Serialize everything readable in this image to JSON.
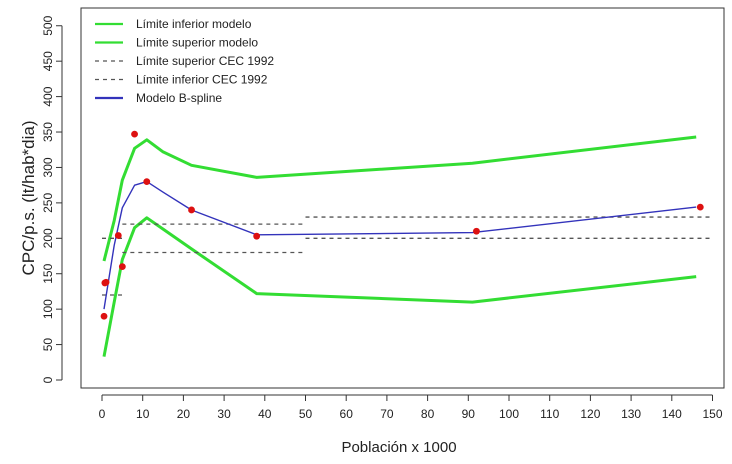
{
  "chart_data": {
    "type": "line",
    "xlabel": "Población x 1000",
    "ylabel": "CPC/p.s. (lt/hab*dia)",
    "xlim": [
      0,
      150
    ],
    "ylim": [
      0,
      500
    ],
    "x_ticks": [
      0,
      10,
      20,
      30,
      40,
      50,
      60,
      70,
      80,
      90,
      100,
      110,
      120,
      130,
      140,
      150
    ],
    "y_ticks": [
      0,
      50,
      100,
      150,
      200,
      250,
      300,
      350,
      400,
      450,
      500
    ],
    "grid": false,
    "legend_position": "top-left",
    "legend": [
      {
        "label": "Límite inferior modelo",
        "color": "#33dd33",
        "style": "solid"
      },
      {
        "label": "Límite superior modelo",
        "color": "#33dd33",
        "style": "solid"
      },
      {
        "label": "Límite superior CEC 1992",
        "color": "#555555",
        "style": "dashed"
      },
      {
        "label": "Límite inferior CEC 1992",
        "color": "#555555",
        "style": "dashed"
      },
      {
        "label": "Modelo B-spline",
        "color": "#3333bb",
        "style": "solid"
      }
    ],
    "series": [
      {
        "name": "Límite inferior modelo",
        "color": "#33dd33",
        "style": "solid",
        "points": [
          [
            0.5,
            33
          ],
          [
            3,
            110
          ],
          [
            5,
            170
          ],
          [
            8,
            215
          ],
          [
            11,
            229
          ],
          [
            15,
            213
          ],
          [
            22,
            185
          ],
          [
            38,
            122
          ],
          [
            91,
            110
          ],
          [
            146,
            146
          ]
        ]
      },
      {
        "name": "Límite superior modelo",
        "color": "#33dd33",
        "style": "solid",
        "points": [
          [
            0.5,
            168
          ],
          [
            3,
            225
          ],
          [
            5,
            282
          ],
          [
            8,
            327
          ],
          [
            11,
            339
          ],
          [
            15,
            322
          ],
          [
            22,
            303
          ],
          [
            38,
            286
          ],
          [
            91,
            306
          ],
          [
            146,
            343
          ]
        ]
      },
      {
        "name": "Límite superior CEC 1992",
        "color": "#555555",
        "style": "dashed",
        "segments": [
          [
            [
              5,
              220
            ],
            [
              50,
              220
            ]
          ],
          [
            [
              50,
              230
            ],
            [
              150,
              230
            ]
          ]
        ]
      },
      {
        "name": "Límite inferior CEC 1992",
        "color": "#555555",
        "style": "dashed",
        "segments": [
          [
            [
              0,
              120
            ],
            [
              5,
              120
            ]
          ],
          [
            [
              0,
              200
            ],
            [
              5,
              200
            ]
          ],
          [
            [
              5,
              180
            ],
            [
              50,
              180
            ]
          ],
          [
            [
              50,
              200
            ],
            [
              150,
              200
            ]
          ]
        ]
      },
      {
        "name": "Modelo B-spline",
        "color": "#3333bb",
        "style": "solid",
        "points": [
          [
            0.5,
            100
          ],
          [
            3,
            190
          ],
          [
            5,
            243
          ],
          [
            8,
            275
          ],
          [
            11,
            280
          ],
          [
            15,
            265
          ],
          [
            22,
            240
          ],
          [
            38,
            205
          ],
          [
            91,
            208
          ],
          [
            146,
            244
          ]
        ]
      }
    ],
    "observed_points": {
      "color": "#dd1111",
      "points": [
        [
          0.5,
          90
        ],
        [
          0.7,
          137
        ],
        [
          1,
          138
        ],
        [
          4,
          204
        ],
        [
          5,
          160
        ],
        [
          8,
          347
        ],
        [
          11,
          280
        ],
        [
          22,
          240
        ],
        [
          38,
          203
        ],
        [
          92,
          210
        ],
        [
          147,
          244
        ]
      ]
    }
  }
}
